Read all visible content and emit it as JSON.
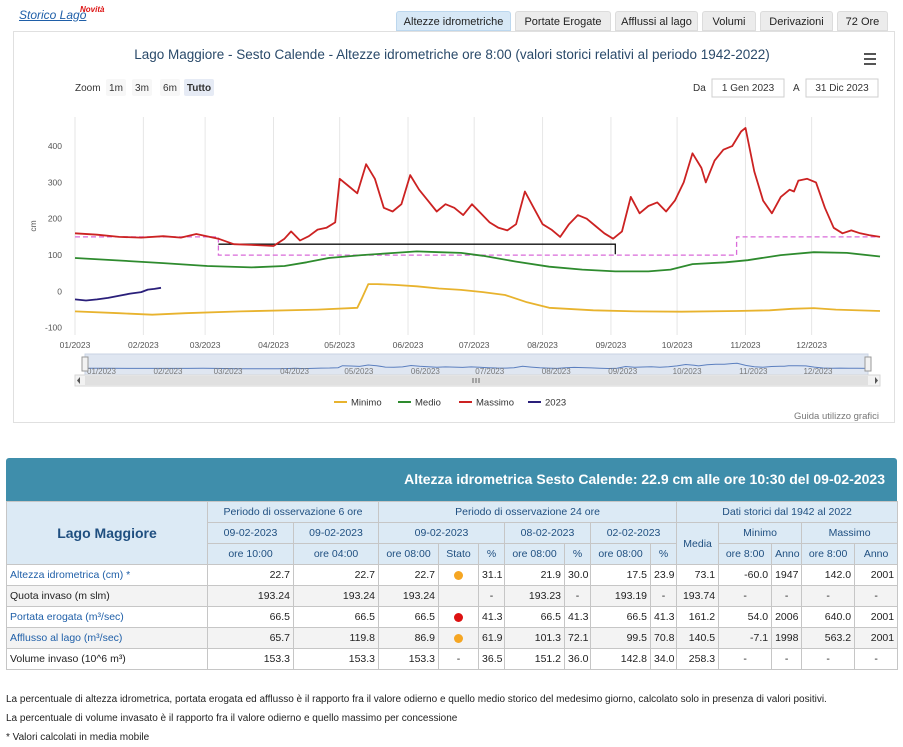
{
  "header": {
    "link_label": "Storico Lago",
    "new_badge": "Novità"
  },
  "tabs": [
    {
      "label": "Altezze idrometriche",
      "active": true
    },
    {
      "label": "Portate Erogate",
      "active": false
    },
    {
      "label": "Afflussi al lago",
      "active": false
    },
    {
      "label": "Volumi",
      "active": false
    },
    {
      "label": "Derivazioni",
      "active": false
    },
    {
      "label": "72 Ore",
      "active": false
    }
  ],
  "chart_toolbar": {
    "zoom_label": "Zoom",
    "zoom_buttons": [
      "1m",
      "3m",
      "6m",
      "Tutto"
    ],
    "active_zoom": "Tutto",
    "from_label": "Da",
    "from_value": "1 Gen 2023",
    "to_label": "A",
    "to_value": "31 Dic 2023",
    "credits": "Guida utilizzo grafici"
  },
  "chart_data": {
    "type": "line",
    "title": "Lago Maggiore - Sesto Calende - Altezze idrometriche ore 8:00 (valori storici relativi al periodo 1942-2022)",
    "ylabel": "cm",
    "ylim": [
      -120,
      480
    ],
    "yticks": [
      -100,
      0,
      100,
      200,
      300,
      400
    ],
    "xlim": [
      0,
      365
    ],
    "xticks": [
      {
        "day": 0,
        "label": "01/2023"
      },
      {
        "day": 31,
        "label": "02/2023"
      },
      {
        "day": 59,
        "label": "03/2023"
      },
      {
        "day": 90,
        "label": "04/2023"
      },
      {
        "day": 120,
        "label": "05/2023"
      },
      {
        "day": 151,
        "label": "06/2023"
      },
      {
        "day": 181,
        "label": "07/2023"
      },
      {
        "day": 212,
        "label": "08/2023"
      },
      {
        "day": 243,
        "label": "09/2023"
      },
      {
        "day": 273,
        "label": "10/2023"
      },
      {
        "day": 304,
        "label": "11/2023"
      },
      {
        "day": 334,
        "label": "12/2023"
      }
    ],
    "legend_position": "bottom",
    "series": [
      {
        "name": "Minimo",
        "color": "#e8b32e",
        "points": [
          [
            0,
            -55
          ],
          [
            20,
            -60
          ],
          [
            35,
            -64
          ],
          [
            50,
            -60
          ],
          [
            75,
            -55
          ],
          [
            110,
            -50
          ],
          [
            128,
            -45
          ],
          [
            130,
            -20
          ],
          [
            133,
            20
          ],
          [
            137,
            20
          ],
          [
            145,
            18
          ],
          [
            155,
            14
          ],
          [
            165,
            8
          ],
          [
            175,
            4
          ],
          [
            185,
            -2
          ],
          [
            195,
            -10
          ],
          [
            205,
            -30
          ],
          [
            215,
            -45
          ],
          [
            235,
            -52
          ],
          [
            255,
            -55
          ],
          [
            275,
            -56
          ],
          [
            300,
            -54
          ],
          [
            315,
            -52
          ],
          [
            325,
            -48
          ],
          [
            335,
            -46
          ],
          [
            345,
            -50
          ],
          [
            365,
            -54
          ]
        ]
      },
      {
        "name": "Medio",
        "color": "#2e8b2e",
        "points": [
          [
            0,
            92
          ],
          [
            20,
            85
          ],
          [
            40,
            78
          ],
          [
            60,
            70
          ],
          [
            80,
            66
          ],
          [
            95,
            70
          ],
          [
            105,
            80
          ],
          [
            115,
            92
          ],
          [
            130,
            100
          ],
          [
            145,
            106
          ],
          [
            155,
            110
          ],
          [
            165,
            108
          ],
          [
            175,
            106
          ],
          [
            185,
            98
          ],
          [
            200,
            82
          ],
          [
            215,
            68
          ],
          [
            230,
            60
          ],
          [
            245,
            55
          ],
          [
            260,
            55
          ],
          [
            270,
            60
          ],
          [
            280,
            75
          ],
          [
            295,
            80
          ],
          [
            305,
            86
          ],
          [
            320,
            100
          ],
          [
            335,
            108
          ],
          [
            350,
            106
          ],
          [
            365,
            96
          ]
        ]
      },
      {
        "name": "Massimo",
        "color": "#cc2222",
        "points": [
          [
            0,
            160
          ],
          [
            10,
            156
          ],
          [
            20,
            150
          ],
          [
            30,
            148
          ],
          [
            40,
            152
          ],
          [
            48,
            148
          ],
          [
            55,
            158
          ],
          [
            65,
            145
          ],
          [
            72,
            130
          ],
          [
            80,
            128
          ],
          [
            90,
            125
          ],
          [
            95,
            145
          ],
          [
            98,
            165
          ],
          [
            102,
            140
          ],
          [
            106,
            152
          ],
          [
            110,
            170
          ],
          [
            114,
            175
          ],
          [
            118,
            190
          ],
          [
            120,
            310
          ],
          [
            124,
            290
          ],
          [
            128,
            270
          ],
          [
            132,
            350
          ],
          [
            136,
            310
          ],
          [
            140,
            230
          ],
          [
            144,
            220
          ],
          [
            148,
            240
          ],
          [
            152,
            320
          ],
          [
            156,
            280
          ],
          [
            160,
            250
          ],
          [
            164,
            220
          ],
          [
            168,
            240
          ],
          [
            172,
            230
          ],
          [
            176,
            210
          ],
          [
            180,
            240
          ],
          [
            184,
            215
          ],
          [
            188,
            190
          ],
          [
            192,
            175
          ],
          [
            196,
            168
          ],
          [
            200,
            185
          ],
          [
            204,
            275
          ],
          [
            208,
            230
          ],
          [
            212,
            185
          ],
          [
            216,
            170
          ],
          [
            220,
            150
          ],
          [
            224,
            185
          ],
          [
            228,
            210
          ],
          [
            232,
            200
          ],
          [
            236,
            180
          ],
          [
            240,
            160
          ],
          [
            244,
            145
          ],
          [
            248,
            165
          ],
          [
            252,
            260
          ],
          [
            256,
            215
          ],
          [
            260,
            235
          ],
          [
            264,
            245
          ],
          [
            268,
            220
          ],
          [
            272,
            250
          ],
          [
            276,
            300
          ],
          [
            280,
            380
          ],
          [
            284,
            340
          ],
          [
            286,
            300
          ],
          [
            290,
            360
          ],
          [
            294,
            390
          ],
          [
            298,
            400
          ],
          [
            302,
            440
          ],
          [
            304,
            450
          ],
          [
            308,
            330
          ],
          [
            312,
            250
          ],
          [
            316,
            215
          ],
          [
            320,
            260
          ],
          [
            324,
            280
          ],
          [
            326,
            275
          ],
          [
            328,
            305
          ],
          [
            332,
            310
          ],
          [
            336,
            300
          ],
          [
            340,
            230
          ],
          [
            344,
            175
          ],
          [
            348,
            160
          ],
          [
            352,
            168
          ],
          [
            356,
            160
          ],
          [
            360,
            155
          ],
          [
            365,
            150
          ]
        ]
      },
      {
        "name": "2023",
        "color": "#2a1f7a",
        "points": [
          [
            0,
            -22
          ],
          [
            5,
            -25
          ],
          [
            10,
            -22
          ],
          [
            15,
            -18
          ],
          [
            20,
            -12
          ],
          [
            25,
            -6
          ],
          [
            30,
            -2
          ],
          [
            33,
            5
          ],
          [
            36,
            7
          ],
          [
            39,
            10
          ]
        ]
      }
    ],
    "reference_lines": [
      {
        "style": "dashed",
        "color": "#d96ad9",
        "points": [
          [
            0,
            150
          ],
          [
            65,
            150
          ],
          [
            65,
            100
          ],
          [
            300,
            100
          ],
          [
            300,
            150
          ],
          [
            365,
            150
          ]
        ]
      },
      {
        "style": "solid",
        "color": "#111111",
        "points": [
          [
            65,
            130
          ],
          [
            245,
            130
          ],
          [
            245,
            102
          ]
        ]
      }
    ]
  },
  "panel": {
    "title": "Altezza idrometrica Sesto Calende: 22.9 cm alle ore 10:30 del 09-02-2023",
    "lake_name": "Lago Maggiore",
    "group_headers": [
      "Periodo di osservazione 6 ore",
      "Periodo di osservazione 24 ore",
      "Dati storici dal 1942 al 2022"
    ],
    "date_headers": [
      "09-02-2023",
      "09-02-2023",
      "09-02-2023",
      "08-02-2023",
      "02-02-2023"
    ],
    "media_label": "Media",
    "minimo_label": "Minimo",
    "massimo_label": "Massimo",
    "hour_headers": [
      "ore 10:00",
      "ore 04:00",
      "ore 08:00",
      "Stato",
      "%",
      "ore 08:00",
      "%",
      "ore 08:00",
      "%"
    ],
    "hist_sub_headers": [
      "ore 8:00",
      "Anno",
      "ore 8:00",
      "Anno"
    ],
    "rows": [
      {
        "label": "Altezza idrometrica (cm) *",
        "link": true,
        "status": "#f5a623",
        "values": [
          "22.7",
          "22.7",
          "22.7",
          "31.1",
          "21.9",
          "30.0",
          "17.5",
          "23.9",
          "73.1",
          "-60.0",
          "1947",
          "142.0",
          "2001"
        ]
      },
      {
        "label": "Quota invaso (m slm)",
        "link": false,
        "status": "",
        "values": [
          "193.24",
          "193.24",
          "193.24",
          "-",
          "193.23",
          "-",
          "193.19",
          "-",
          "193.74",
          "-",
          "-",
          "-",
          "-"
        ]
      },
      {
        "label": "Portata erogata (m³/sec)",
        "link": true,
        "status": "#dd1111",
        "values": [
          "66.5",
          "66.5",
          "66.5",
          "41.3",
          "66.5",
          "41.3",
          "66.5",
          "41.3",
          "161.2",
          "54.0",
          "2006",
          "640.0",
          "2001"
        ]
      },
      {
        "label": "Afflusso al lago (m³/sec)",
        "link": true,
        "status": "#f5a623",
        "values": [
          "65.7",
          "119.8",
          "86.9",
          "61.9",
          "101.3",
          "72.1",
          "99.5",
          "70.8",
          "140.5",
          "-7.1",
          "1998",
          "563.2",
          "2001"
        ]
      },
      {
        "label": "Volume invaso (10^6 m³)",
        "link": false,
        "status": "-",
        "values": [
          "153.3",
          "153.3",
          "153.3",
          "36.5",
          "151.2",
          "36.0",
          "142.8",
          "34.0",
          "258.3",
          "-",
          "-",
          "-",
          "-"
        ]
      }
    ]
  },
  "notes": [
    "La percentuale di altezza idrometrica, portata erogata ed afflusso è il rapporto fra il valore odierno e quello medio storico del medesimo giorno, calcolato solo in presenza di valori positivi.",
    "La percentuale di volume invasato è il rapporto fra il valore odierno e quello massimo per concessione",
    "* Valori calcolati in media mobile"
  ]
}
